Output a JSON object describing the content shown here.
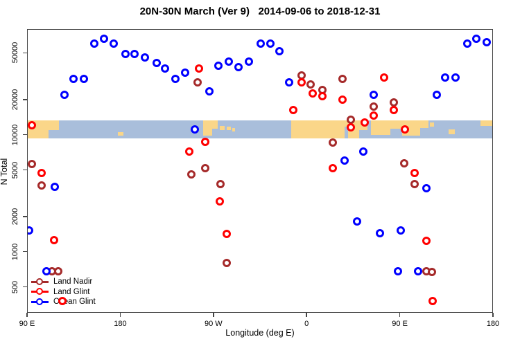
{
  "chart_data": {
    "type": "scatter",
    "title": "20N-30N March (Ver 9)   2014-09-06 to 2018-12-31",
    "xlabel": "Longitude (deg E)",
    "ylabel": "N Total",
    "x_scale": "longitude unwrapped eastward from 90E",
    "y_scale": "log10",
    "xlim": [
      90,
      540
    ],
    "ylim": [
      300,
      80000
    ],
    "grid": false,
    "legend_position": "bottom-left",
    "x_ticks": [
      {
        "v": 90,
        "label": "90 E"
      },
      {
        "v": 180,
        "label": "180"
      },
      {
        "v": 270,
        "label": "90 W"
      },
      {
        "v": 360,
        "label": "0"
      },
      {
        "v": 450,
        "label": "90 E"
      },
      {
        "v": 540,
        "label": "180"
      }
    ],
    "y_ticks": [
      {
        "v": 500,
        "label": "500"
      },
      {
        "v": 1000,
        "label": "1000"
      },
      {
        "v": 2000,
        "label": "2000"
      },
      {
        "v": 5000,
        "label": "5000"
      },
      {
        "v": 10000,
        "label": "10000"
      },
      {
        "v": 20000,
        "label": "20000"
      },
      {
        "v": 50000,
        "label": "50000"
      }
    ],
    "map_band": {
      "description": "world-map strip of the 20N-30N latitude belt drawn across the plot",
      "top_n": 13200,
      "bottom_n": 9300,
      "ocean_color": "#A9BEDB",
      "land_color": "#FAD689",
      "land_segments": [
        {
          "s": 90,
          "e": 111,
          "t": 0,
          "b": 1
        },
        {
          "s": 111,
          "e": 121,
          "t": 0,
          "b": 0.55
        },
        {
          "s": 178,
          "e": 183,
          "t": 0.65,
          "b": 0.85
        },
        {
          "s": 260,
          "e": 269,
          "t": 0,
          "b": 0.85
        },
        {
          "s": 269,
          "e": 274,
          "t": 0,
          "b": 0.45
        },
        {
          "s": 276,
          "e": 281,
          "t": 0.3,
          "b": 0.55
        },
        {
          "s": 283,
          "e": 287,
          "t": 0.35,
          "b": 0.55
        },
        {
          "s": 288,
          "e": 291,
          "t": 0.4,
          "b": 0.6
        },
        {
          "s": 345,
          "e": 397,
          "t": 0,
          "b": 1
        },
        {
          "s": 397,
          "e": 400,
          "t": 0,
          "b": 0.35
        },
        {
          "s": 400,
          "e": 411,
          "t": 0,
          "b": 1
        },
        {
          "s": 411,
          "e": 419,
          "t": 0,
          "b": 0.55
        },
        {
          "s": 422,
          "e": 441,
          "t": 0,
          "b": 0.8
        },
        {
          "s": 441,
          "e": 452,
          "t": 0,
          "b": 0.45
        },
        {
          "s": 452,
          "e": 470,
          "t": 0,
          "b": 0.85
        },
        {
          "s": 470,
          "e": 478,
          "t": 0,
          "b": 0.4
        },
        {
          "s": 479,
          "e": 483,
          "t": 0.1,
          "b": 0.35
        },
        {
          "s": 497,
          "e": 503,
          "t": 0.5,
          "b": 0.75
        },
        {
          "s": 528,
          "e": 540,
          "t": 0,
          "b": 0.3
        }
      ]
    },
    "series": [
      {
        "name": "Land Nadir",
        "color": "#A52A2A",
        "points": [
          [
            95,
            5600
          ],
          [
            104,
            3700
          ],
          [
            114,
            680
          ],
          [
            120,
            680
          ],
          [
            249,
            4600
          ],
          [
            255,
            28000
          ],
          [
            262,
            5200
          ],
          [
            277,
            3800
          ],
          [
            283,
            800
          ],
          [
            355,
            32000
          ],
          [
            364,
            27000
          ],
          [
            375,
            24000
          ],
          [
            385,
            8600
          ],
          [
            395,
            30000
          ],
          [
            403,
            13500
          ],
          [
            425,
            17400
          ],
          [
            444,
            19000
          ],
          [
            454,
            5700
          ],
          [
            464,
            3800
          ],
          [
            476,
            680
          ],
          [
            481,
            670
          ]
        ]
      },
      {
        "name": "Land Glint",
        "color": "#FF0000",
        "points": [
          [
            95,
            12000
          ],
          [
            104,
            4700
          ],
          [
            116,
            1260
          ],
          [
            124,
            380
          ],
          [
            247,
            7200
          ],
          [
            256,
            37000
          ],
          [
            262,
            8700
          ],
          [
            276,
            2700
          ],
          [
            283,
            1420
          ],
          [
            347,
            16300
          ],
          [
            355,
            28000
          ],
          [
            366,
            22500
          ],
          [
            375,
            21300
          ],
          [
            385,
            5200
          ],
          [
            395,
            20000
          ],
          [
            403,
            11500
          ],
          [
            416,
            12800
          ],
          [
            425,
            14600
          ],
          [
            435,
            31000
          ],
          [
            444,
            16300
          ],
          [
            455,
            11100
          ],
          [
            464,
            4700
          ],
          [
            476,
            1240
          ],
          [
            482,
            380
          ]
        ]
      },
      {
        "name": "Ocean Glint",
        "color": "#0000FF",
        "points": [
          [
            92,
            1520
          ],
          [
            109,
            680
          ],
          [
            117,
            3600
          ],
          [
            126,
            22000
          ],
          [
            135,
            30000
          ],
          [
            145,
            30000
          ],
          [
            155,
            60000
          ],
          [
            164,
            66000
          ],
          [
            174,
            60000
          ],
          [
            185,
            49000
          ],
          [
            194,
            49000
          ],
          [
            204,
            46000
          ],
          [
            215,
            41000
          ],
          [
            223,
            37000
          ],
          [
            233,
            30000
          ],
          [
            243,
            34000
          ],
          [
            252,
            11100
          ],
          [
            266,
            23500
          ],
          [
            275,
            39000
          ],
          [
            285,
            42000
          ],
          [
            294,
            38000
          ],
          [
            304,
            42000
          ],
          [
            316,
            60000
          ],
          [
            325,
            60000
          ],
          [
            334,
            52000
          ],
          [
            343,
            28000
          ],
          [
            397,
            6000
          ],
          [
            409,
            1800
          ],
          [
            415,
            7200
          ],
          [
            425,
            22000
          ],
          [
            431,
            1440
          ],
          [
            448,
            675
          ],
          [
            451,
            1520
          ],
          [
            468,
            680
          ],
          [
            476,
            3500
          ],
          [
            486,
            22000
          ],
          [
            494,
            31000
          ],
          [
            504,
            31000
          ],
          [
            515,
            60000
          ],
          [
            524,
            66000
          ],
          [
            534,
            62000
          ]
        ]
      }
    ]
  }
}
